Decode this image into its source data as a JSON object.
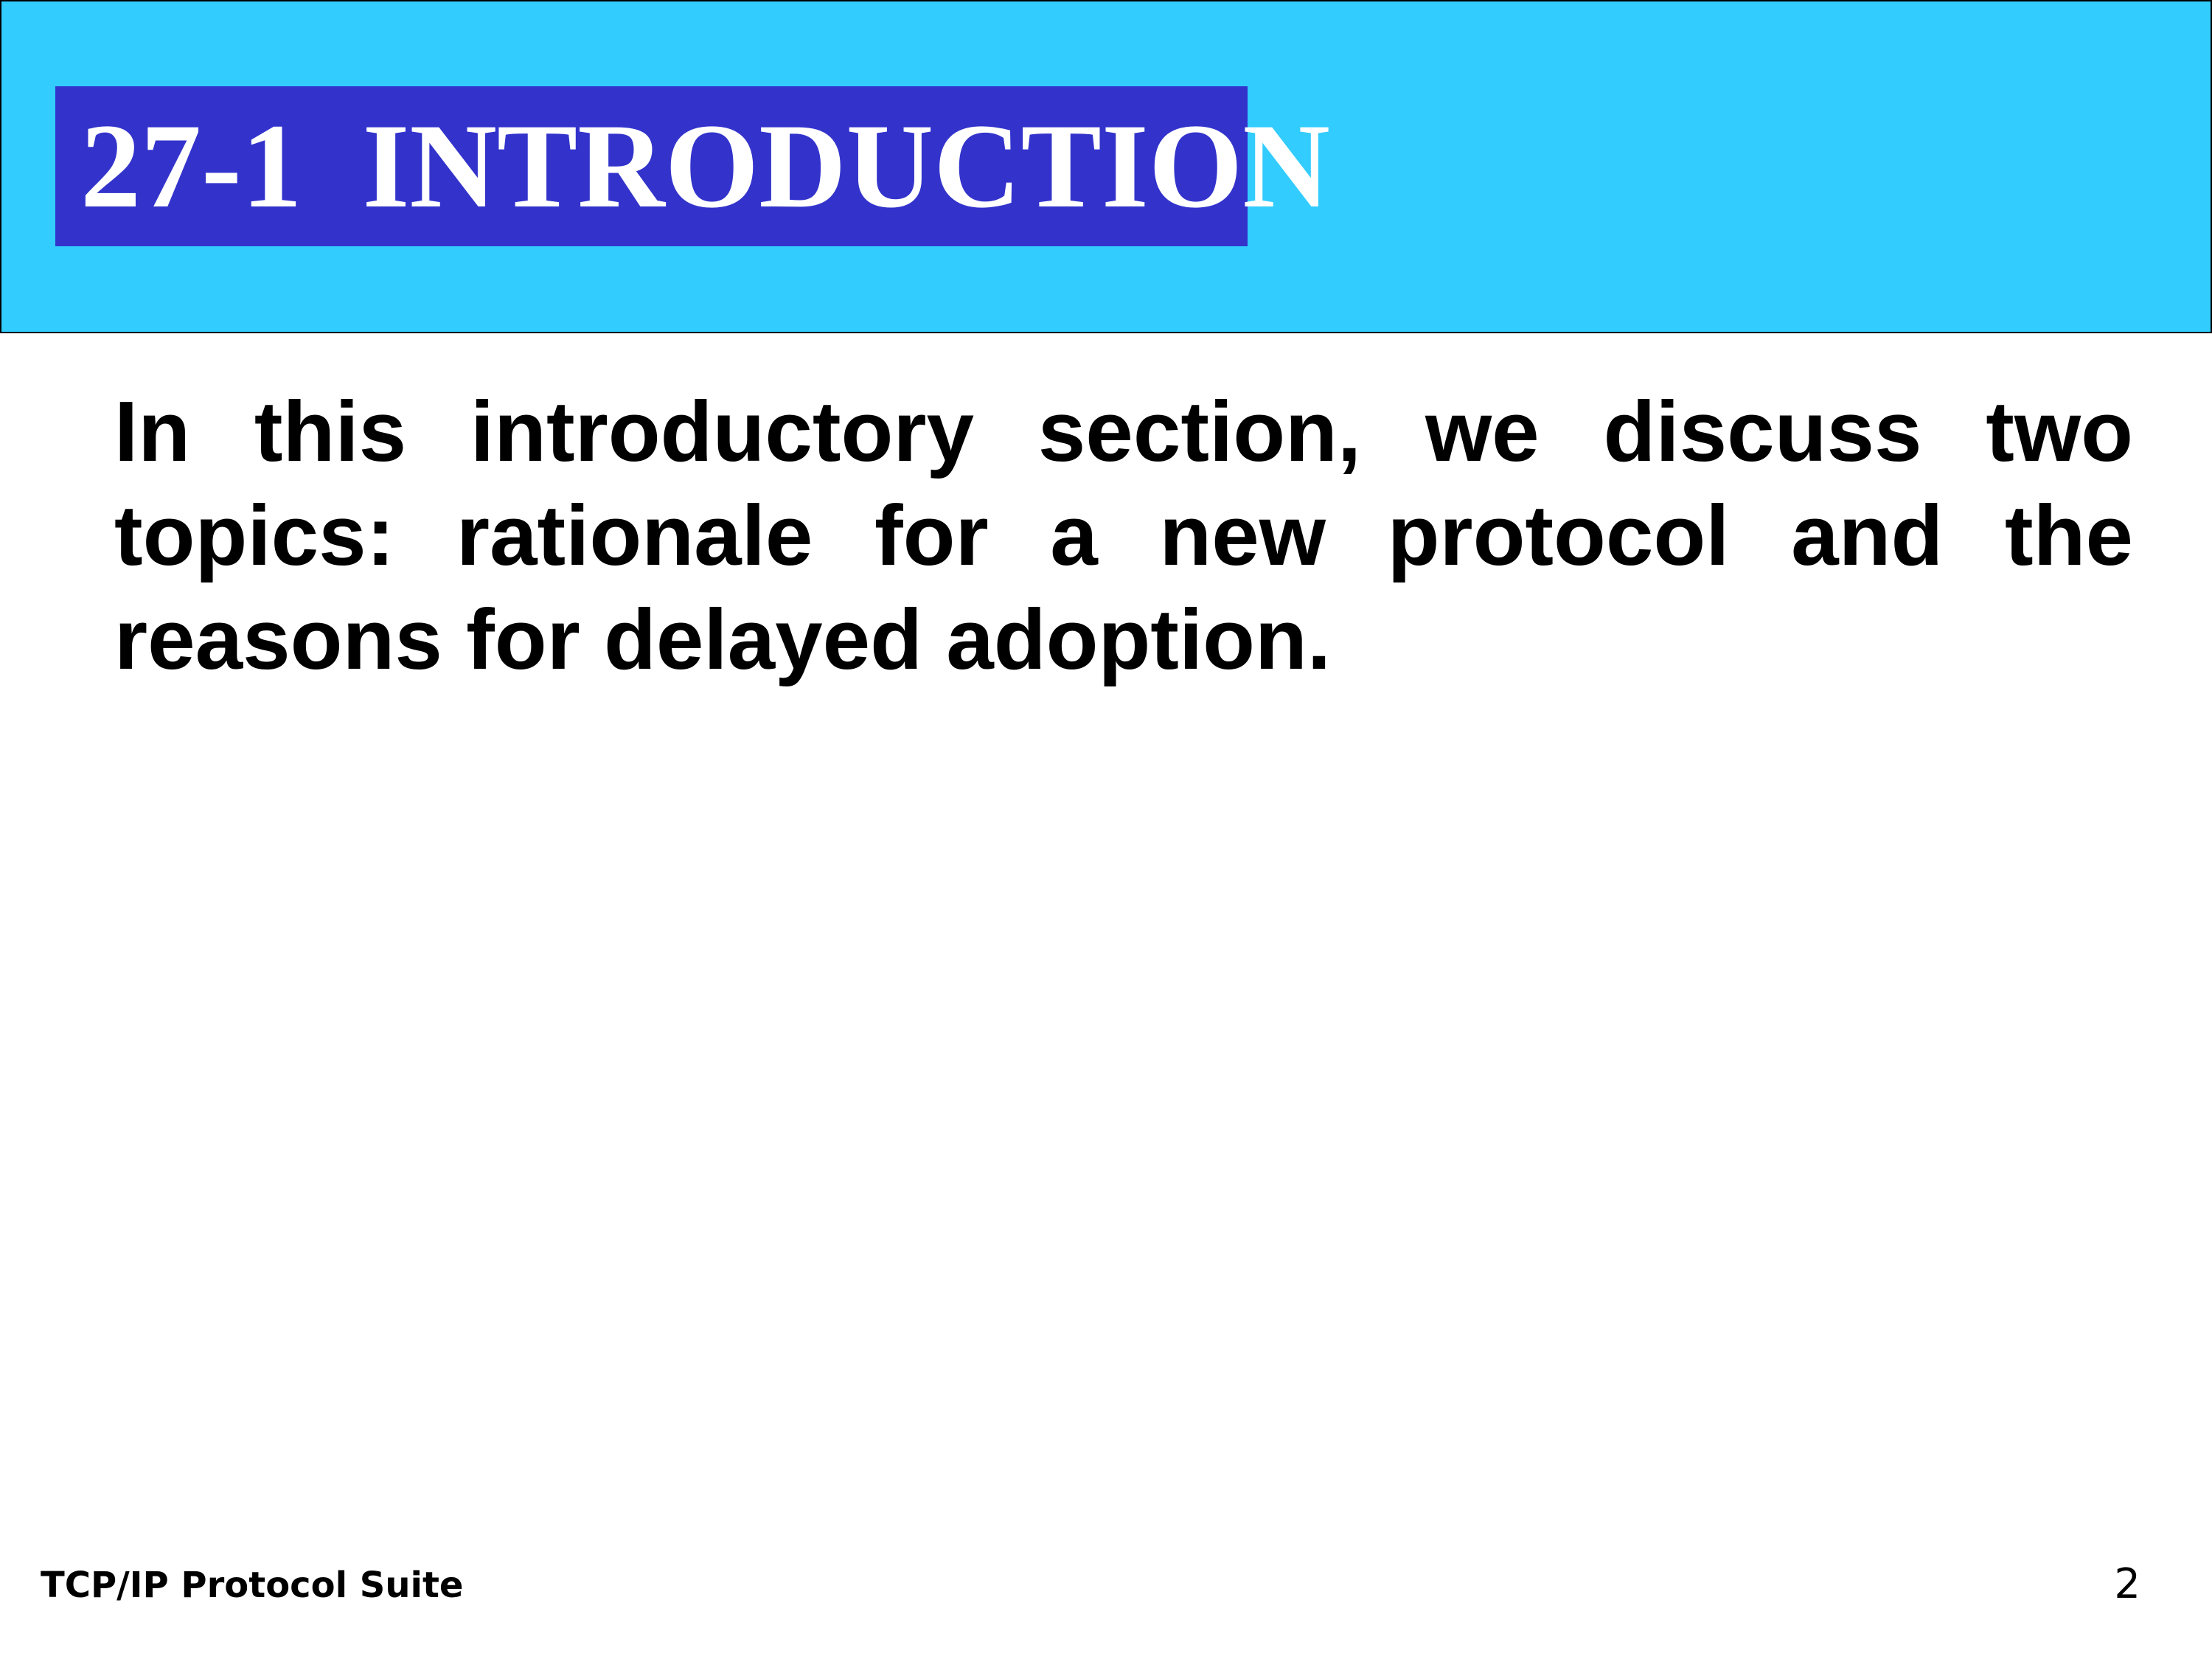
{
  "header": {
    "title": "27-1  INTRODUCTION",
    "band_color": "#33ccff",
    "title_box_color": "#3333cc"
  },
  "body": {
    "paragraph": "In this introductory section, we discuss two topics: rationale for a new protocol and the reasons for delayed adoption."
  },
  "footer": {
    "left_text": "TCP/IP Protocol Suite",
    "page_number": "2"
  }
}
